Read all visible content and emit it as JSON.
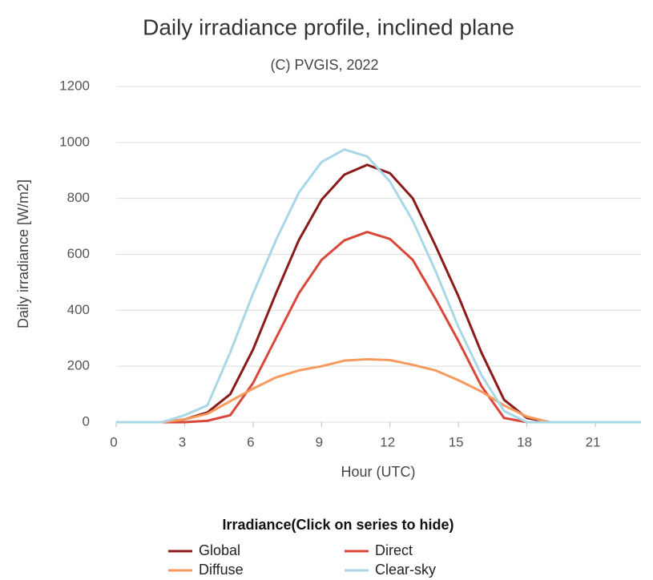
{
  "chart_data": {
    "type": "line",
    "title": "Daily irradiance profile, inclined plane",
    "subtitle": "(C) PVGIS, 2022",
    "x_label": "Hour (UTC)",
    "y_label": "Daily irradiance [W/m2]",
    "legend_title": "Irradiance(Click on series to hide)",
    "x": [
      0,
      1,
      2,
      3,
      4,
      5,
      6,
      7,
      8,
      9,
      10,
      11,
      12,
      13,
      14,
      15,
      16,
      17,
      18,
      19,
      20,
      21,
      22,
      23
    ],
    "xlim": [
      0,
      23
    ],
    "xticks": [
      0,
      3,
      6,
      9,
      12,
      15,
      18,
      21
    ],
    "ylim": [
      0,
      1200
    ],
    "yticks": [
      0,
      200,
      400,
      600,
      800,
      1000,
      1200
    ],
    "grid": true,
    "series": [
      {
        "name": "Global",
        "color": "#8b1a1a",
        "values": [
          0,
          0,
          0,
          10,
          35,
          100,
          260,
          460,
          650,
          795,
          885,
          920,
          890,
          800,
          630,
          450,
          250,
          80,
          15,
          0,
          0,
          0,
          0,
          0
        ]
      },
      {
        "name": "Direct",
        "color": "#d9463a",
        "values": [
          0,
          0,
          0,
          0,
          5,
          25,
          140,
          300,
          460,
          580,
          650,
          680,
          655,
          580,
          440,
          290,
          130,
          15,
          0,
          0,
          0,
          0,
          0,
          0
        ]
      },
      {
        "name": "Diffuse",
        "color": "#f79a5e",
        "values": [
          0,
          0,
          0,
          10,
          30,
          75,
          120,
          160,
          185,
          200,
          220,
          225,
          222,
          205,
          185,
          150,
          110,
          60,
          20,
          0,
          0,
          0,
          0,
          0
        ]
      },
      {
        "name": "Clear-sky",
        "color": "#a8d8e8",
        "values": [
          0,
          0,
          0,
          25,
          60,
          250,
          460,
          650,
          820,
          930,
          975,
          950,
          860,
          720,
          540,
          340,
          170,
          40,
          0,
          0,
          0,
          0,
          0,
          0
        ]
      }
    ]
  }
}
